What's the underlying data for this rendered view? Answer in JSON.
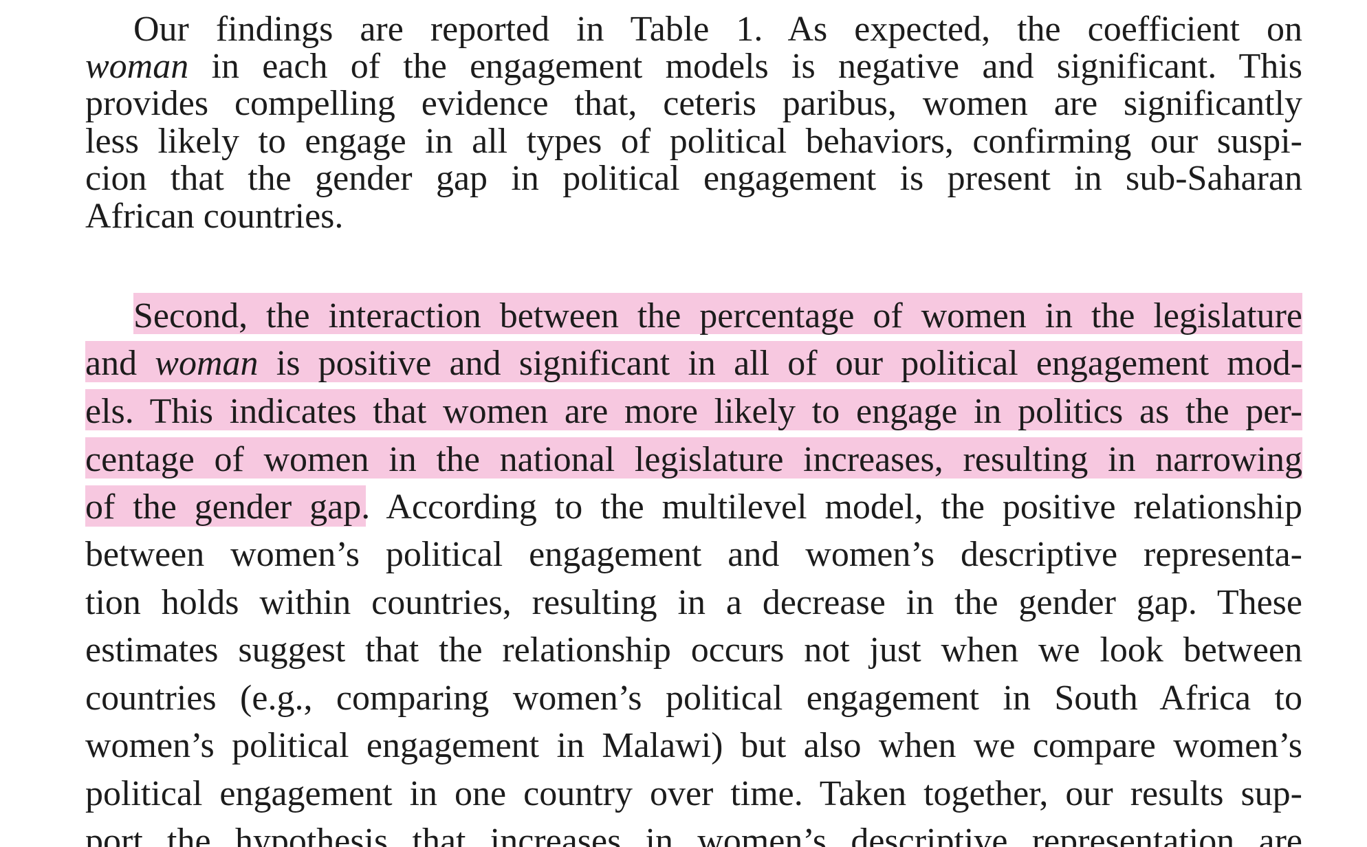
{
  "paragraph1": {
    "lines": [
      "Our findings are reported in Table 1. As expected, the coefficient on",
      "in each of the engagement models is negative and significant. This",
      "provides compelling evidence that, ceteris paribus, women are significantly",
      "less likely to engage in all types of political behaviors, confirming our suspi-",
      "cion that the gender gap in political engagement is present in sub-Saharan",
      "African countries."
    ],
    "italic_word": "woman"
  },
  "paragraph2": {
    "line1": "Second, the interaction between the percentage of women in the legislature",
    "line2_a": "and",
    "line2_italic": "woman",
    "line2_b": "is positive and significant in all of our political engagement mod-",
    "line3": "els. This indicates that women are more likely to engage in politics as the per-",
    "line4": "centage of women in the national legislature increases, resulting in narrowing",
    "line5_highlighted": "of the gender gap.",
    "line5_rest": "According to the multilevel model, the positive relationship",
    "lines_rest": [
      "between women’s political engagement and women’s descriptive representa-",
      "tion holds within countries, resulting in a decrease in the gender gap. These",
      "estimates suggest that the relationship occurs not just when we look between",
      "countries (e.g., comparing women’s political engagement in South Africa to",
      "women’s political engagement in Malawi) but also when we compare women’s",
      "political engagement in one country over time. Taken together, our results sup-",
      "port the hypothesis that increases in women’s descriptive representation are"
    ]
  },
  "highlight_color": "#f7c8e0",
  "text_color": "#1c1c1c"
}
